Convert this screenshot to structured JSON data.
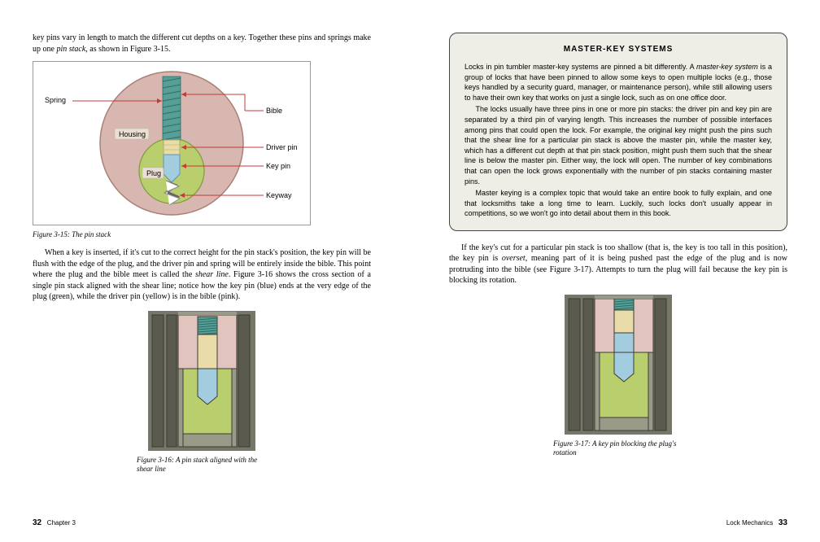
{
  "left": {
    "intro": "key pins vary in length to match the different cut depths on a key. Together these pins and springs make up one ",
    "intro_ital": "pin stack",
    "intro_tail": ", as shown in Figure 3-15.",
    "fig315": {
      "caption": "Figure 3-15: The pin stack",
      "labels": {
        "spring": "Spring",
        "housing": "Housing",
        "plug": "Plug",
        "bible": "Bible",
        "driver": "Driver pin",
        "key": "Key pin",
        "keyway": "Keyway"
      },
      "colors": {
        "housing": "#d8b7b0",
        "housing_stroke": "#a97f76",
        "plug": "#b9cf6e",
        "plug_stroke": "#7f9a3d",
        "spring": "#579e96",
        "spring_stroke": "#2a6e66",
        "driver": "#e9dca8",
        "driver_stroke": "#b8a767",
        "keypin": "#a4ccdf",
        "keypin_stroke": "#5f93ab",
        "keyway_fill": "#ffffff",
        "keyway_stroke": "#888888",
        "leader": "#c43a3a"
      }
    },
    "para2_pre": "When a key is inserted, if it's cut to the correct height for the pin stack's position, the key pin will be flush with the edge of the plug, and the driver pin and spring will be entirely inside the bible. This point where the plug and the bible meet is called the ",
    "para2_ital": "shear line",
    "para2_post": ". Figure 3-16 shows the cross section of a single pin stack aligned with the shear line; notice how the key pin (blue) ends at the very edge of the plug (green), while the driver pin (yellow) is in the bible (pink).",
    "fig316": {
      "caption": "Figure 3-16: A pin stack aligned with the shear line"
    },
    "footer_num": "32",
    "footer_text": "Chapter 3"
  },
  "right": {
    "sidebar": {
      "title": "MASTER-KEY SYSTEMS",
      "p1_pre": "Locks in pin tumbler master-key systems are pinned a bit differently. A ",
      "p1_ital": "master-key system",
      "p1_post": " is a group of locks that have been pinned to allow some keys to open multiple locks (e.g., those keys handled by a security guard, manager, or maintenance person), while still allowing users to have their own key that works on just a single lock, such as on one office door.",
      "p2": "The locks usually have three pins in one or more pin stacks: the driver pin and key pin are separated by a third pin of varying length. This increases the number of possible interfaces among pins that could open the lock. For example, the original key might push the pins such that the shear line for a particular pin stack is above the master pin, while the master key, which has a different cut depth at that pin stack position, might push them such that the shear line is below the master pin. Either way, the lock will open. The number of key combinations that can open the lock grows exponentially with the number of pin stacks containing master pins.",
      "p3": "Master keying is a complex topic that would take an entire book to fully explain, and one that locksmiths take a long time to learn. Luckily, such locks don't usually appear in competitions, so we won't go into detail about them in this book."
    },
    "para_pre": "If the key's cut for a particular pin stack is too shallow (that is, the key is too tall in this position), the key pin is ",
    "para_ital": "overset",
    "para_post": ", meaning part of it is being pushed past the edge of the plug and is now protruding into the bible (see Figure 3-17). Attempts to turn the plug will fail because the key pin is blocking its rotation.",
    "fig317": {
      "caption": "Figure 3-17: A key pin blocking the plug's rotation"
    },
    "footer_text": "Lock Mechanics",
    "footer_num": "33"
  },
  "xsec_colors": {
    "metal_dark": "#5a5a4e",
    "metal_mid": "#777768",
    "metal_light": "#9a9a88",
    "housing": "#e2c4bf",
    "plug": "#b9cf6e",
    "spring": "#579e96",
    "driver": "#e9dca8",
    "keypin": "#a4ccdf",
    "outline": "#3b3b33"
  }
}
